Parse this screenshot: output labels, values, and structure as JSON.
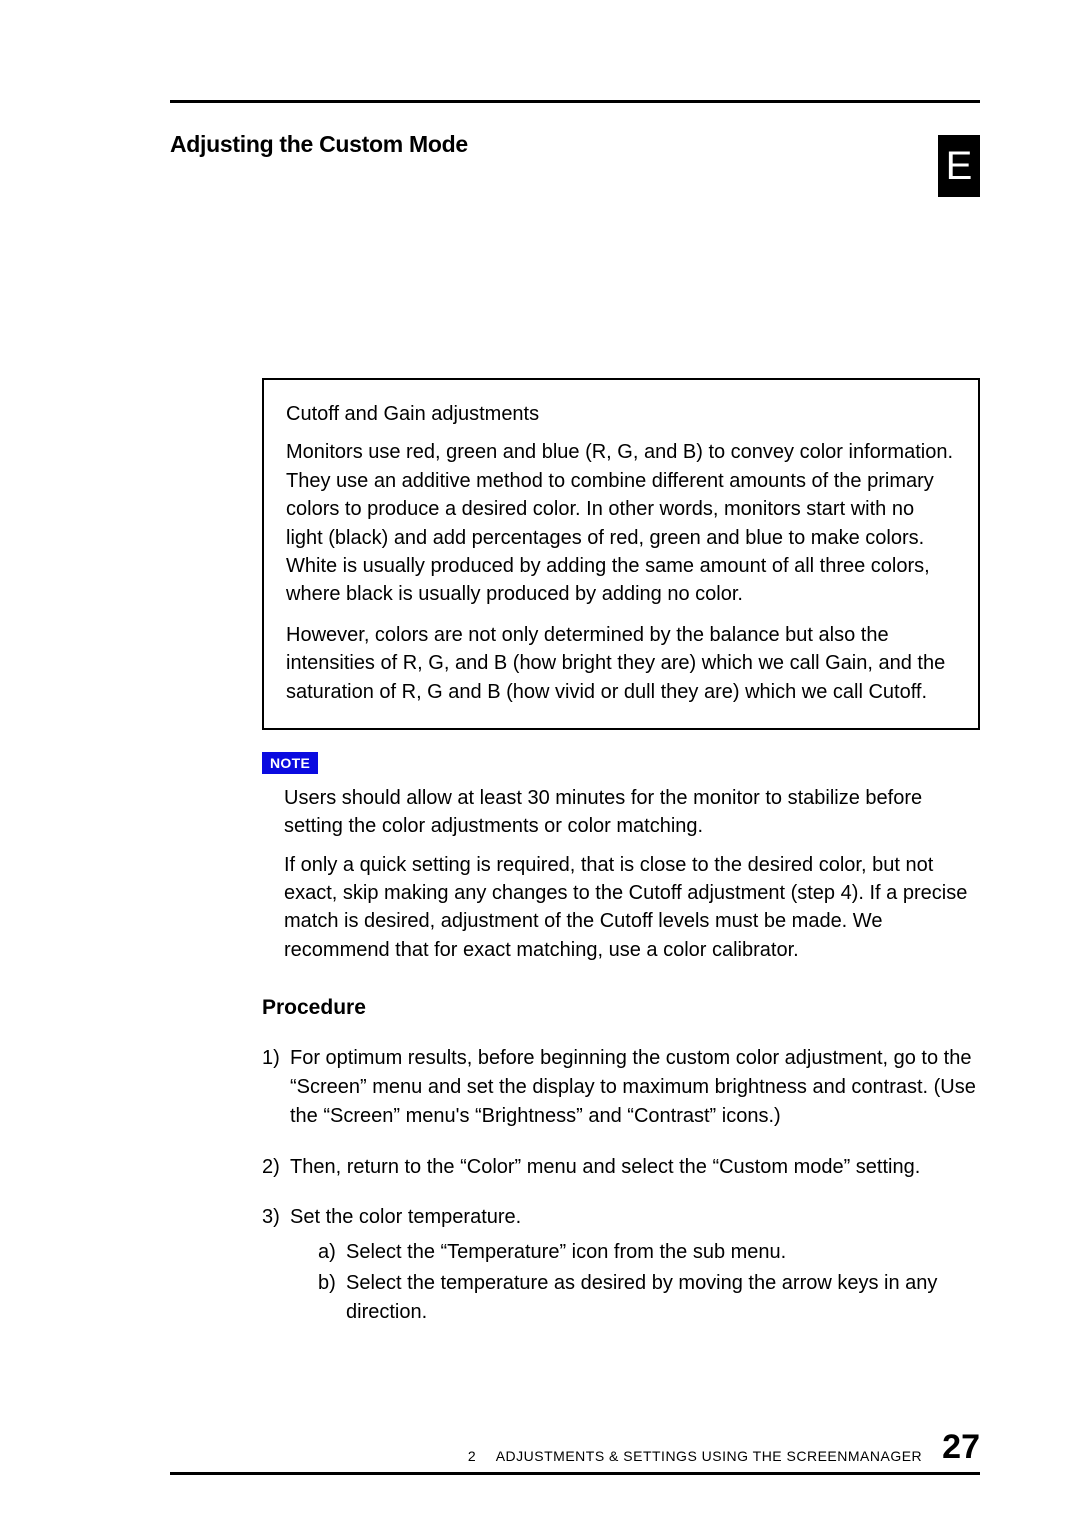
{
  "colors": {
    "page_bg": "#ffffff",
    "text": "#000000",
    "rule": "#000000",
    "tab_bg": "#000000",
    "tab_fg": "#ffffff",
    "note_badge_bg": "#0a0ae0",
    "note_badge_fg": "#ffffff",
    "box_border": "#000000"
  },
  "typography": {
    "body_fontsize_pt": 15,
    "title_fontsize_pt": 17,
    "pagenum_fontsize_pt": 26,
    "note_badge_fontsize_pt": 10,
    "font_family": "Arial"
  },
  "header": {
    "title": "Adjusting the Custom Mode",
    "side_tab_letter": "E"
  },
  "info_box": {
    "heading": "Cutoff and Gain adjustments",
    "p1": "Monitors use red, green and blue (R, G, and B) to convey color information.  They use an additive method to combine different amounts of the primary colors to produce a desired color.  In other words, monitors start with no light (black) and add percentages of red, green and blue to make colors.  White is usually produced by adding the same amount of all three colors, where black is usually produced by adding no color.",
    "p2": "However, colors are not only determined by the balance but also the intensities of R, G, and B (how bright they are) which we call Gain, and the saturation of R, G and B (how vivid or dull they are) which we call Cutoff."
  },
  "note": {
    "label": "NOTE",
    "p1": "Users should allow at least 30 minutes for the monitor to stabilize before setting the color adjustments or color matching.",
    "p2": "If only a quick setting is required, that is close to the desired color, but not exact, skip making any changes to the Cutoff adjustment (step 4).  If a precise match is desired, adjustment of the Cutoff levels must be made.  We recommend that for exact matching, use a color calibrator."
  },
  "procedure": {
    "heading": "Procedure",
    "steps": [
      {
        "num": "1)",
        "text": "For optimum results, before beginning the custom color adjustment, go to the “Screen” menu and set the display to maximum brightness and contrast.  (Use the “Screen” menu's “Brightness” and “Contrast” icons.)"
      },
      {
        "num": "2)",
        "text": "Then, return to the “Color” menu and select the “Custom mode” setting."
      },
      {
        "num": "3)",
        "text": "Set the color temperature.",
        "sub": [
          {
            "sn": "a)",
            "st": "Select the “Temperature” icon from the sub menu."
          },
          {
            "sn": "b)",
            "st": "Select the temperature as desired by moving the arrow keys in any direction."
          }
        ]
      }
    ]
  },
  "footer": {
    "chapter_number": "2",
    "chapter_title": "ADJUSTMENTS & SETTINGS USING THE SCREENMANAGER",
    "page_number": "27"
  }
}
